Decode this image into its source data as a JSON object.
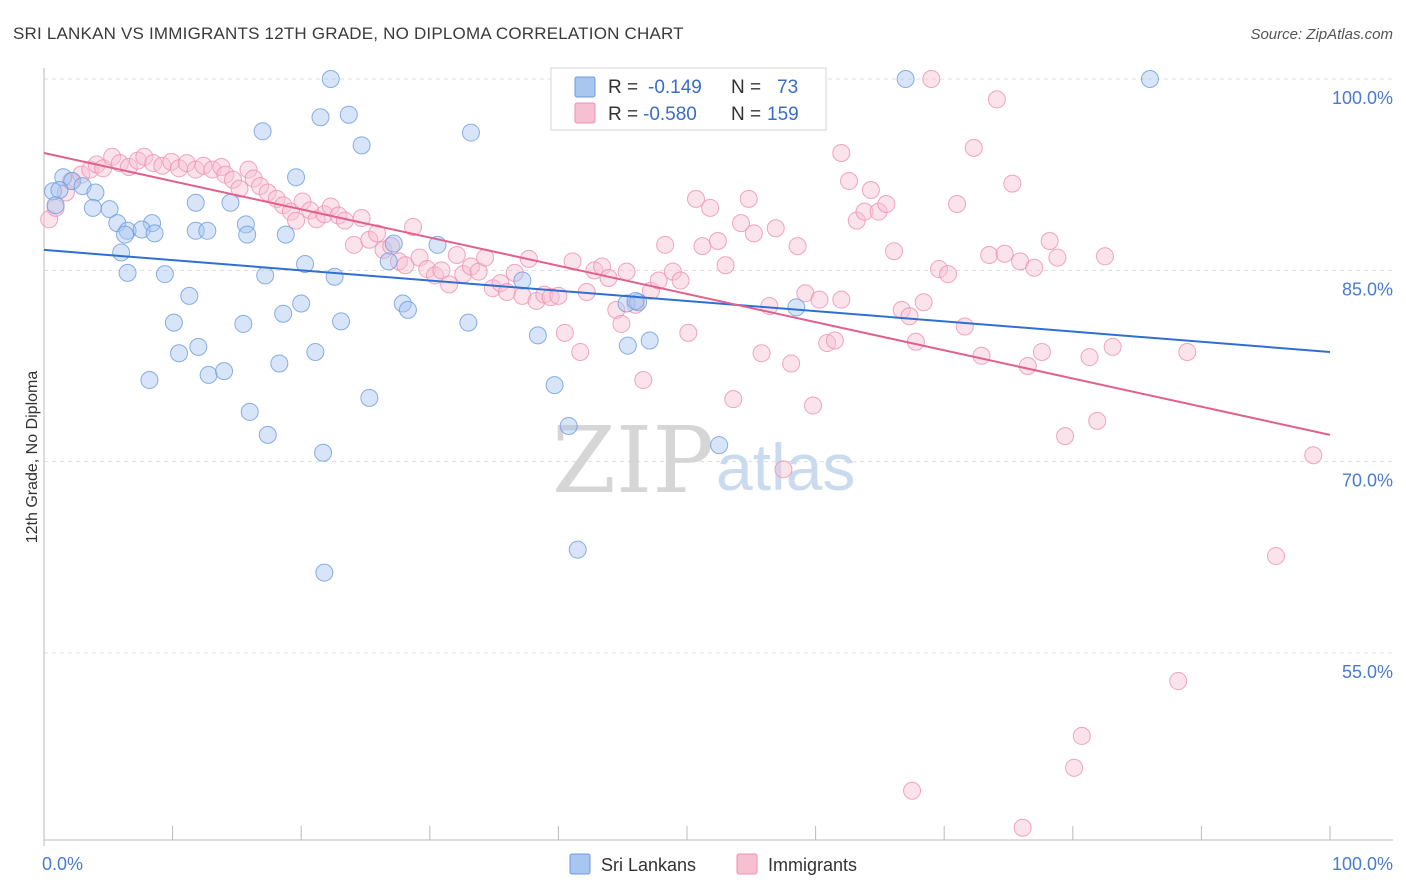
{
  "title": "SRI LANKAN VS IMMIGRANTS 12TH GRADE, NO DIPLOMA CORRELATION CHART",
  "source": "Source: ZipAtlas.com",
  "watermark": {
    "zip": "ZIP",
    "atlas": "atlas"
  },
  "legend": {
    "r_label": "R =",
    "n_label": "N =",
    "rows": [
      {
        "r": "-0.149",
        "n": "73",
        "color": "#a9c6f0",
        "stroke": "#6d9be0"
      },
      {
        "r": "-0.580",
        "n": "159",
        "color": "#f7c0d2",
        "stroke": "#ee90ae"
      }
    ]
  },
  "bottom_legend": [
    {
      "label": "Sri Lankans",
      "color": "#a9c6f0",
      "stroke": "#6d9be0"
    },
    {
      "label": "Immigrants",
      "color": "#f7c0d2",
      "stroke": "#ee90ae"
    }
  ],
  "chart_data": {
    "type": "scatter",
    "title": "SRI LANKAN VS IMMIGRANTS 12TH GRADE, NO DIPLOMA CORRELATION CHART",
    "xlabel": "",
    "ylabel": "12th Grade, No Diploma",
    "xlim": [
      0,
      100
    ],
    "ylim": [
      40,
      101
    ],
    "x_tick_labels": [
      "0.0%",
      "100.0%"
    ],
    "y_ticks": [
      100,
      85,
      70,
      55
    ],
    "y_tick_labels": [
      "100.0%",
      "85.0%",
      "70.0%",
      "55.0%"
    ],
    "grid": "horizontal dashed",
    "series": [
      {
        "name": "Sri Lankans",
        "color": "#6d9be0",
        "trend": {
          "x": [
            0,
            100
          ],
          "y": [
            86.6,
            78.6
          ]
        },
        "points": [
          [
            0.7,
            91.2
          ],
          [
            1.5,
            92.3
          ],
          [
            2.2,
            92.0
          ],
          [
            3.0,
            91.6
          ],
          [
            1.2,
            91.3
          ],
          [
            0.9,
            90.1
          ],
          [
            4.0,
            91.1
          ],
          [
            5.1,
            89.8
          ],
          [
            3.8,
            89.9
          ],
          [
            5.7,
            88.7
          ],
          [
            6.5,
            88.1
          ],
          [
            8.4,
            88.7
          ],
          [
            7.6,
            88.2
          ],
          [
            8.6,
            87.9
          ],
          [
            11.8,
            90.3
          ],
          [
            14.5,
            90.3
          ],
          [
            11.8,
            88.1
          ],
          [
            12.7,
            88.1
          ],
          [
            15.7,
            88.6
          ],
          [
            15.8,
            87.8
          ],
          [
            6.3,
            87.8
          ],
          [
            6.0,
            86.4
          ],
          [
            6.5,
            84.8
          ],
          [
            9.4,
            84.7
          ],
          [
            18.8,
            87.8
          ],
          [
            10.1,
            80.9
          ],
          [
            11.3,
            83.0
          ],
          [
            10.5,
            78.5
          ],
          [
            12.0,
            79.0
          ],
          [
            12.8,
            76.8
          ],
          [
            14.0,
            77.1
          ],
          [
            8.2,
            76.4
          ],
          [
            15.5,
            80.8
          ],
          [
            16.0,
            73.9
          ],
          [
            17.2,
            84.6
          ],
          [
            17.4,
            72.1
          ],
          [
            18.3,
            77.7
          ],
          [
            18.6,
            81.6
          ],
          [
            19.6,
            92.3
          ],
          [
            20.0,
            82.4
          ],
          [
            20.3,
            85.5
          ],
          [
            21.1,
            78.6
          ],
          [
            21.7,
            70.7
          ],
          [
            21.8,
            61.3
          ],
          [
            22.6,
            84.5
          ],
          [
            23.1,
            81.0
          ],
          [
            21.5,
            97.0
          ],
          [
            23.7,
            97.2
          ],
          [
            24.7,
            94.8
          ],
          [
            25.3,
            75.0
          ],
          [
            26.8,
            85.7
          ],
          [
            27.2,
            87.1
          ],
          [
            27.9,
            82.4
          ],
          [
            28.3,
            81.9
          ],
          [
            22.3,
            100.0
          ],
          [
            17.0,
            95.9
          ],
          [
            30.6,
            87.0
          ],
          [
            33.0,
            80.9
          ],
          [
            33.2,
            95.8
          ],
          [
            37.2,
            84.2
          ],
          [
            38.4,
            79.9
          ],
          [
            39.7,
            76.0
          ],
          [
            40.8,
            72.8
          ],
          [
            41.5,
            63.1
          ],
          [
            45.3,
            82.4
          ],
          [
            45.4,
            79.1
          ],
          [
            46.2,
            82.5
          ],
          [
            47.1,
            79.5
          ],
          [
            52.5,
            71.3
          ],
          [
            67.0,
            100.0
          ],
          [
            86.0,
            100.0
          ],
          [
            58.5,
            82.1
          ],
          [
            46.0,
            82.6
          ]
        ]
      },
      {
        "name": "Immigrants",
        "color": "#ee90ae",
        "trend": {
          "x": [
            0,
            100
          ],
          "y": [
            94.2,
            72.1
          ]
        },
        "points": [
          [
            0.4,
            89.0
          ],
          [
            0.9,
            89.9
          ],
          [
            1.7,
            91.1
          ],
          [
            2.1,
            92.0
          ],
          [
            2.9,
            92.5
          ],
          [
            3.6,
            92.9
          ],
          [
            4.1,
            93.3
          ],
          [
            4.6,
            93.0
          ],
          [
            5.3,
            93.9
          ],
          [
            5.9,
            93.4
          ],
          [
            6.6,
            93.1
          ],
          [
            7.3,
            93.6
          ],
          [
            7.8,
            93.9
          ],
          [
            8.5,
            93.4
          ],
          [
            9.2,
            93.2
          ],
          [
            9.9,
            93.5
          ],
          [
            10.5,
            93.0
          ],
          [
            11.1,
            93.4
          ],
          [
            11.8,
            92.9
          ],
          [
            12.4,
            93.2
          ],
          [
            13.1,
            92.9
          ],
          [
            13.8,
            93.1
          ],
          [
            14.1,
            92.5
          ],
          [
            14.7,
            92.1
          ],
          [
            15.2,
            91.4
          ],
          [
            15.9,
            92.9
          ],
          [
            16.3,
            92.2
          ],
          [
            16.8,
            91.6
          ],
          [
            17.4,
            91.1
          ],
          [
            18.1,
            90.6
          ],
          [
            18.6,
            90.1
          ],
          [
            19.2,
            89.6
          ],
          [
            19.6,
            88.9
          ],
          [
            20.1,
            90.4
          ],
          [
            20.7,
            89.7
          ],
          [
            21.2,
            89.0
          ],
          [
            21.8,
            89.4
          ],
          [
            22.3,
            90.0
          ],
          [
            22.9,
            89.3
          ],
          [
            23.4,
            88.9
          ],
          [
            24.1,
            87.0
          ],
          [
            24.7,
            89.1
          ],
          [
            25.3,
            87.4
          ],
          [
            25.9,
            87.9
          ],
          [
            26.4,
            86.6
          ],
          [
            27.0,
            86.9
          ],
          [
            27.6,
            85.7
          ],
          [
            28.1,
            85.4
          ],
          [
            28.7,
            88.4
          ],
          [
            29.2,
            86.0
          ],
          [
            29.8,
            85.1
          ],
          [
            30.4,
            84.6
          ],
          [
            30.9,
            85.0
          ],
          [
            31.5,
            83.9
          ],
          [
            32.1,
            86.2
          ],
          [
            32.6,
            84.7
          ],
          [
            33.2,
            85.3
          ],
          [
            33.8,
            84.9
          ],
          [
            34.3,
            86.0
          ],
          [
            34.9,
            83.6
          ],
          [
            35.5,
            84.0
          ],
          [
            36.0,
            83.3
          ],
          [
            36.6,
            84.8
          ],
          [
            37.2,
            83.0
          ],
          [
            37.7,
            85.9
          ],
          [
            38.3,
            82.6
          ],
          [
            38.9,
            83.1
          ],
          [
            39.4,
            82.9
          ],
          [
            40.0,
            83.0
          ],
          [
            40.5,
            80.1
          ],
          [
            41.1,
            85.7
          ],
          [
            41.7,
            78.6
          ],
          [
            42.2,
            83.3
          ],
          [
            42.8,
            85.0
          ],
          [
            43.4,
            85.3
          ],
          [
            43.9,
            84.4
          ],
          [
            44.5,
            81.9
          ],
          [
            44.9,
            80.8
          ],
          [
            45.3,
            84.9
          ],
          [
            46.0,
            82.3
          ],
          [
            46.6,
            76.4
          ],
          [
            47.2,
            83.4
          ],
          [
            47.8,
            84.2
          ],
          [
            48.3,
            87.0
          ],
          [
            48.9,
            84.9
          ],
          [
            49.5,
            84.2
          ],
          [
            50.1,
            80.1
          ],
          [
            50.7,
            90.6
          ],
          [
            51.2,
            86.9
          ],
          [
            51.8,
            89.9
          ],
          [
            52.4,
            87.3
          ],
          [
            53.0,
            85.4
          ],
          [
            53.6,
            74.9
          ],
          [
            54.2,
            88.7
          ],
          [
            54.8,
            90.6
          ],
          [
            55.2,
            87.9
          ],
          [
            55.8,
            78.5
          ],
          [
            56.4,
            82.2
          ],
          [
            56.9,
            88.3
          ],
          [
            57.5,
            69.4
          ],
          [
            58.1,
            77.7
          ],
          [
            58.6,
            86.9
          ],
          [
            59.2,
            83.2
          ],
          [
            59.8,
            74.4
          ],
          [
            60.3,
            82.7
          ],
          [
            60.9,
            79.3
          ],
          [
            61.5,
            79.5
          ],
          [
            62.0,
            94.2
          ],
          [
            62.6,
            92.0
          ],
          [
            63.2,
            88.9
          ],
          [
            63.8,
            89.6
          ],
          [
            64.3,
            91.3
          ],
          [
            64.9,
            89.6
          ],
          [
            65.5,
            90.2
          ],
          [
            66.1,
            86.5
          ],
          [
            66.7,
            81.9
          ],
          [
            67.3,
            81.4
          ],
          [
            67.8,
            79.4
          ],
          [
            68.4,
            82.5
          ],
          [
            69.0,
            100.0
          ],
          [
            69.6,
            85.1
          ],
          [
            70.3,
            84.7
          ],
          [
            71.0,
            90.2
          ],
          [
            71.6,
            80.6
          ],
          [
            72.3,
            94.6
          ],
          [
            72.9,
            78.3
          ],
          [
            73.5,
            86.2
          ],
          [
            74.1,
            98.4
          ],
          [
            74.7,
            86.3
          ],
          [
            75.3,
            91.8
          ],
          [
            75.9,
            85.7
          ],
          [
            76.5,
            77.5
          ],
          [
            77.0,
            85.2
          ],
          [
            77.6,
            78.6
          ],
          [
            78.2,
            87.3
          ],
          [
            78.8,
            86.0
          ],
          [
            79.4,
            72.0
          ],
          [
            80.1,
            46.0
          ],
          [
            80.7,
            48.5
          ],
          [
            81.3,
            78.2
          ],
          [
            81.9,
            73.2
          ],
          [
            82.5,
            86.1
          ],
          [
            83.1,
            79.0
          ],
          [
            88.9,
            78.6
          ],
          [
            88.2,
            52.8
          ],
          [
            95.8,
            62.6
          ],
          [
            98.7,
            70.5
          ],
          [
            76.1,
            41.3
          ],
          [
            67.5,
            44.2
          ],
          [
            62.0,
            82.7
          ]
        ]
      }
    ]
  }
}
